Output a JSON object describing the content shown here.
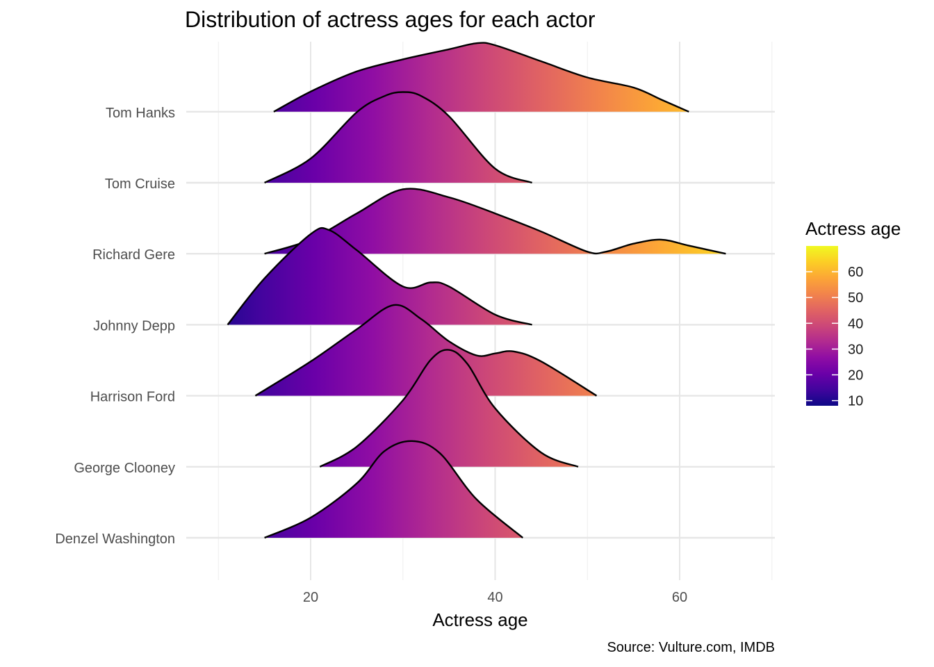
{
  "chart_data": {
    "type": "area",
    "subtype": "ridgeline",
    "title": "Distribution of actress ages for each actor",
    "xlabel": "Actress age",
    "ylabel": "",
    "caption": "Source: Vulture.com, IMDB",
    "xlim": [
      5,
      70
    ],
    "x_ticks": [
      20,
      40,
      60
    ],
    "grid": true,
    "legend": {
      "title": "Actress age",
      "placement": "right",
      "type": "colorbar",
      "ticks": [
        10,
        20,
        30,
        40,
        50,
        60
      ],
      "range": [
        8,
        70
      ],
      "palette": "plasma"
    },
    "series": [
      {
        "name": "Tom Hanks",
        "x": [
          16,
          20,
          25,
          30,
          35,
          38,
          40,
          45,
          50,
          55,
          58,
          61
        ],
        "density": [
          0,
          0.1,
          0.2,
          0.26,
          0.31,
          0.34,
          0.33,
          0.25,
          0.17,
          0.12,
          0.06,
          0
        ]
      },
      {
        "name": "Tom Cruise",
        "x": [
          15,
          20,
          25,
          28,
          30,
          32,
          35,
          40,
          44
        ],
        "density": [
          0,
          0.12,
          0.35,
          0.43,
          0.45,
          0.43,
          0.33,
          0.07,
          0
        ]
      },
      {
        "name": "Richard Gere",
        "x": [
          15,
          20,
          25,
          30,
          35,
          40,
          45,
          50,
          52,
          55,
          58,
          61,
          65
        ],
        "density": [
          0,
          0.07,
          0.2,
          0.32,
          0.28,
          0.2,
          0.11,
          0.01,
          0.01,
          0.05,
          0.07,
          0.04,
          0
        ]
      },
      {
        "name": "Johnny Depp",
        "x": [
          11,
          15,
          20,
          22,
          25,
          30,
          33,
          35,
          40,
          44
        ],
        "density": [
          0,
          0.23,
          0.45,
          0.47,
          0.37,
          0.19,
          0.21,
          0.19,
          0.05,
          0
        ]
      },
      {
        "name": "Harrison Ford",
        "x": [
          14,
          20,
          25,
          29,
          32,
          35,
          38,
          40,
          42,
          45,
          51
        ],
        "density": [
          0,
          0.17,
          0.33,
          0.45,
          0.38,
          0.27,
          0.2,
          0.21,
          0.22,
          0.17,
          0
        ]
      },
      {
        "name": "George Clooney",
        "x": [
          21,
          25,
          30,
          33,
          35,
          37,
          40,
          45,
          49
        ],
        "density": [
          0,
          0.1,
          0.33,
          0.53,
          0.58,
          0.51,
          0.29,
          0.07,
          0
        ]
      },
      {
        "name": "Denzel Washington",
        "x": [
          15,
          20,
          25,
          28,
          31,
          34,
          38,
          43
        ],
        "density": [
          0,
          0.1,
          0.27,
          0.43,
          0.48,
          0.42,
          0.19,
          0
        ]
      }
    ]
  }
}
